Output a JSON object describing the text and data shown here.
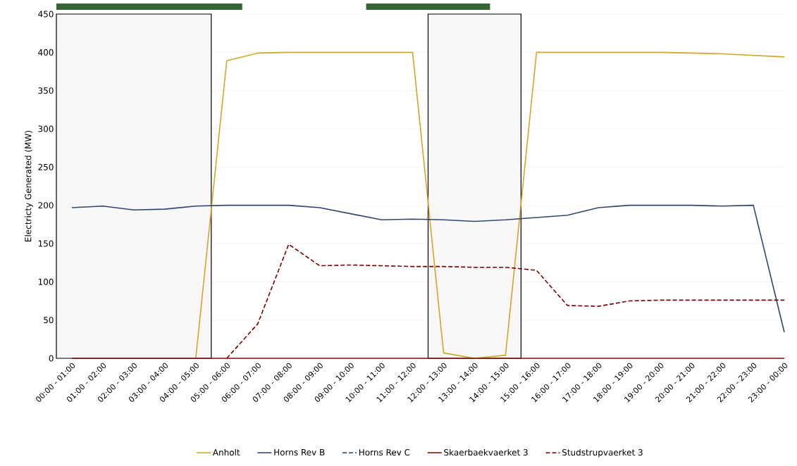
{
  "chart_data": {
    "type": "line",
    "ylabel": "Electricty Generated (MW)",
    "categories": [
      "00:00 - 01:00",
      "01:00 - 02:00",
      "02:00 - 03:00",
      "03:00 - 04:00",
      "04:00 - 05:00",
      "05:00 - 06:00",
      "06:00 - 07:00",
      "07:00 - 08:00",
      "08:00 - 09:00",
      "09:00 - 10:00",
      "10:00 - 11:00",
      "11:00 - 12:00",
      "12:00 - 13:00",
      "13:00 - 14:00",
      "14:00 - 15:00",
      "15:00 - 16:00",
      "16:00 - 17:00",
      "17:00 - 18:00",
      "18:00 - 19:00",
      "19:00 - 20:00",
      "20:00 - 21:00",
      "21:00 - 22:00",
      "22:00 - 23:00",
      "23:00 - 00:00"
    ],
    "series": [
      {
        "name": "Anholt",
        "color": "#d4a52a",
        "line_style": "solid",
        "values": [
          null,
          null,
          null,
          null,
          0,
          389,
          399,
          400,
          400,
          400,
          400,
          400,
          7,
          0,
          4,
          400,
          400,
          400,
          400,
          400,
          399,
          398,
          396,
          394
        ]
      },
      {
        "name": "Horns Rev B",
        "color": "#2f4670",
        "line_style": "solid",
        "values": [
          197,
          199,
          194,
          195,
          199,
          200,
          200,
          200,
          197,
          189,
          181,
          182,
          181,
          179,
          181,
          184,
          187,
          197,
          200,
          200,
          200,
          199,
          200,
          34
        ]
      },
      {
        "name": "Horns Rev C",
        "color": "#1f3864",
        "line_style": "dashed",
        "values": [
          null,
          null,
          null,
          null,
          null,
          null,
          null,
          null,
          null,
          null,
          null,
          null,
          null,
          null,
          null,
          null,
          null,
          null,
          null,
          null,
          null,
          null,
          null,
          null
        ]
      },
      {
        "name": "Skaerbaekvaerket 3",
        "color": "#7b0c0c",
        "line_style": "solid",
        "values": [
          0,
          0,
          0,
          0,
          0,
          0,
          0,
          0,
          0,
          0,
          0,
          0,
          0,
          0,
          0,
          0,
          0,
          0,
          0,
          0,
          0,
          0,
          0,
          0
        ]
      },
      {
        "name": "Studstrupvaerket 3",
        "color": "#7b0000",
        "line_style": "dashed",
        "values": [
          null,
          null,
          null,
          null,
          null,
          0,
          45,
          149,
          121,
          122,
          121,
          120,
          120,
          119,
          119,
          115,
          69,
          68,
          75,
          76,
          76,
          76,
          76,
          76
        ]
      }
    ],
    "ylim": [
      0,
      450
    ],
    "yticks": [
      0,
      50,
      100,
      150,
      200,
      250,
      300,
      350,
      400,
      450
    ],
    "grid": "y",
    "legend": "bottom"
  }
}
